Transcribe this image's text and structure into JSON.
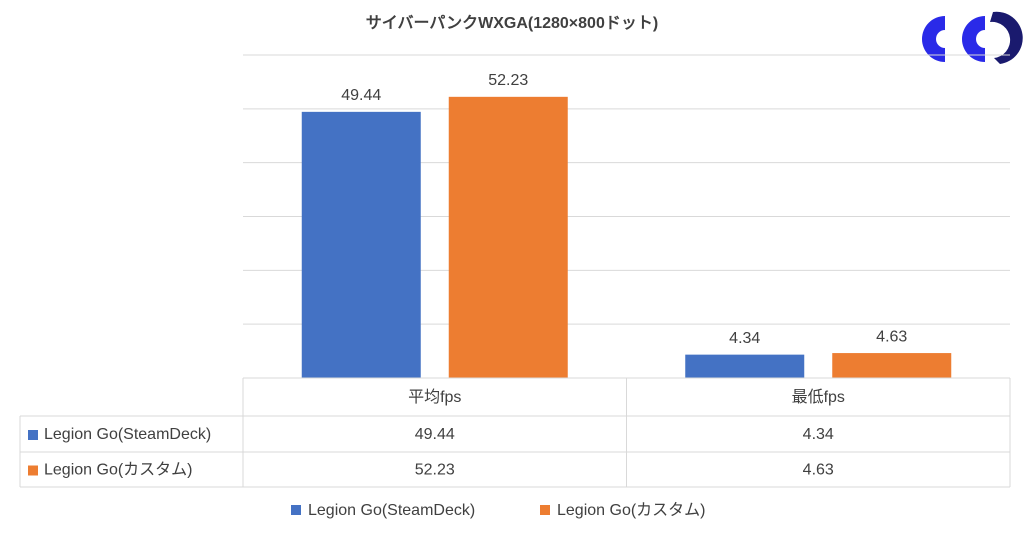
{
  "chart_data": {
    "type": "bar",
    "title": "サイバーパンクWXGA(1280×800ドット)",
    "categories": [
      "平均fps",
      "最低fps"
    ],
    "series": [
      {
        "name": "Legion Go(SteamDeck)",
        "color": "#4472c4",
        "values": [
          49.44,
          4.34
        ]
      },
      {
        "name": "Legion Go(カスタム)",
        "color": "#ed7d31",
        "values": [
          52.23,
          4.63
        ]
      }
    ],
    "ylim": [
      0,
      60
    ],
    "yticks": [
      0,
      10,
      20,
      30,
      40,
      50,
      60
    ],
    "grid": true,
    "legend": "bottom",
    "data_table": true
  }
}
